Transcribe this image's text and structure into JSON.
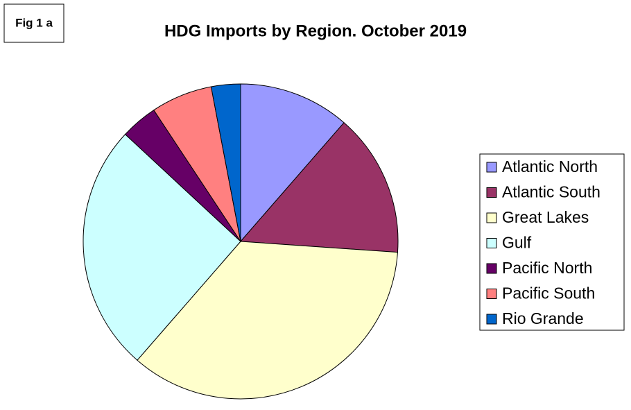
{
  "chart_data": {
    "type": "pie",
    "title": "HDG Imports by Region. October 2019",
    "annotation": "Fig 1 a",
    "categories": [
      "Atlantic North",
      "Atlantic South",
      "Great Lakes",
      "Gulf",
      "Pacific North",
      "Pacific South",
      "Rio Grande"
    ],
    "values": [
      11.4,
      14.7,
      35.3,
      25.5,
      3.8,
      6.3,
      3.0
    ],
    "colors": [
      "#9999ff",
      "#993366",
      "#ffffcc",
      "#ccffff",
      "#660066",
      "#ff8080",
      "#0066cc"
    ],
    "legend": "right"
  }
}
